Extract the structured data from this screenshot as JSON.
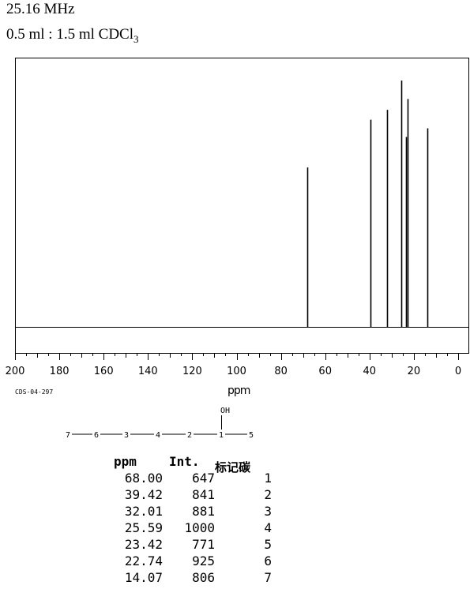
{
  "header": {
    "frequency": "25.16 MHz",
    "solvent_prefix": "0.5 ml : 1.5 ml CDCl",
    "solvent_subscript": "3"
  },
  "sample_code": "CDS-04-297",
  "chart_data": {
    "type": "line",
    "title": "",
    "xlabel": "ppm",
    "ylabel": "",
    "xlim": [
      200,
      0
    ],
    "x_reversed": true,
    "grid": false,
    "x_ticks": [
      200,
      180,
      160,
      140,
      120,
      100,
      80,
      60,
      40,
      20,
      0
    ],
    "peaks": [
      {
        "ppm": 68.0,
        "intensity": 647
      },
      {
        "ppm": 39.42,
        "intensity": 841
      },
      {
        "ppm": 32.01,
        "intensity": 881
      },
      {
        "ppm": 25.59,
        "intensity": 1000
      },
      {
        "ppm": 23.42,
        "intensity": 771
      },
      {
        "ppm": 22.74,
        "intensity": 925
      },
      {
        "ppm": 14.07,
        "intensity": 806
      }
    ],
    "ylim": [
      0,
      1000
    ]
  },
  "structure": {
    "substituent": "OH",
    "chain": [
      "7",
      "6",
      "3",
      "4",
      "2",
      "1",
      "5"
    ]
  },
  "table": {
    "headers": {
      "ppm": "ppm",
      "intensity": "Int.",
      "label": "标记碳"
    },
    "rows": [
      {
        "ppm": "68.00",
        "intensity": "647",
        "label": "1"
      },
      {
        "ppm": "39.42",
        "intensity": "841",
        "label": "2"
      },
      {
        "ppm": "32.01",
        "intensity": "881",
        "label": "3"
      },
      {
        "ppm": "25.59",
        "intensity": "1000",
        "label": "4"
      },
      {
        "ppm": "23.42",
        "intensity": "771",
        "label": "5"
      },
      {
        "ppm": "22.74",
        "intensity": "925",
        "label": "6"
      },
      {
        "ppm": "14.07",
        "intensity": "806",
        "label": "7"
      }
    ]
  }
}
